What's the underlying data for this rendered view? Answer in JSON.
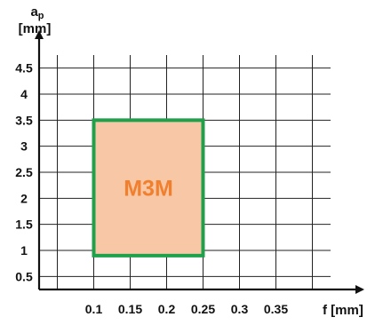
{
  "chart_data": {
    "type": "area",
    "title": "",
    "xlabel": "f [mm]",
    "ylabel_main": "a",
    "ylabel_sub": "p",
    "ylabel_unit": "[mm]",
    "xlim": [
      0.025,
      0.425
    ],
    "ylim": [
      0.25,
      4.75
    ],
    "grid": true,
    "x_ticks": [
      0.1,
      0.15,
      0.2,
      0.25,
      0.3,
      0.35
    ],
    "x_tick_labels": [
      "0.1",
      "0.15",
      "0.2",
      "0.25",
      "0.3",
      "0.35"
    ],
    "x_grid": [
      0.05,
      0.1,
      0.15,
      0.2,
      0.25,
      0.3,
      0.35,
      0.4
    ],
    "y_ticks": [
      0.5,
      1,
      1.5,
      2,
      2.5,
      3,
      3.5,
      4,
      4.5
    ],
    "y_tick_labels": [
      "0.5",
      "1",
      "1.5",
      "2",
      "2.5",
      "3",
      "3.5",
      "4",
      "4.5"
    ],
    "regions": [
      {
        "label": "M3M",
        "x_range": [
          0.1,
          0.25
        ],
        "y_range": [
          0.9,
          3.5
        ],
        "fill_color": "#f8c7a6",
        "border_color": "#1fa04b",
        "label_color": "#f07f2e"
      }
    ]
  }
}
